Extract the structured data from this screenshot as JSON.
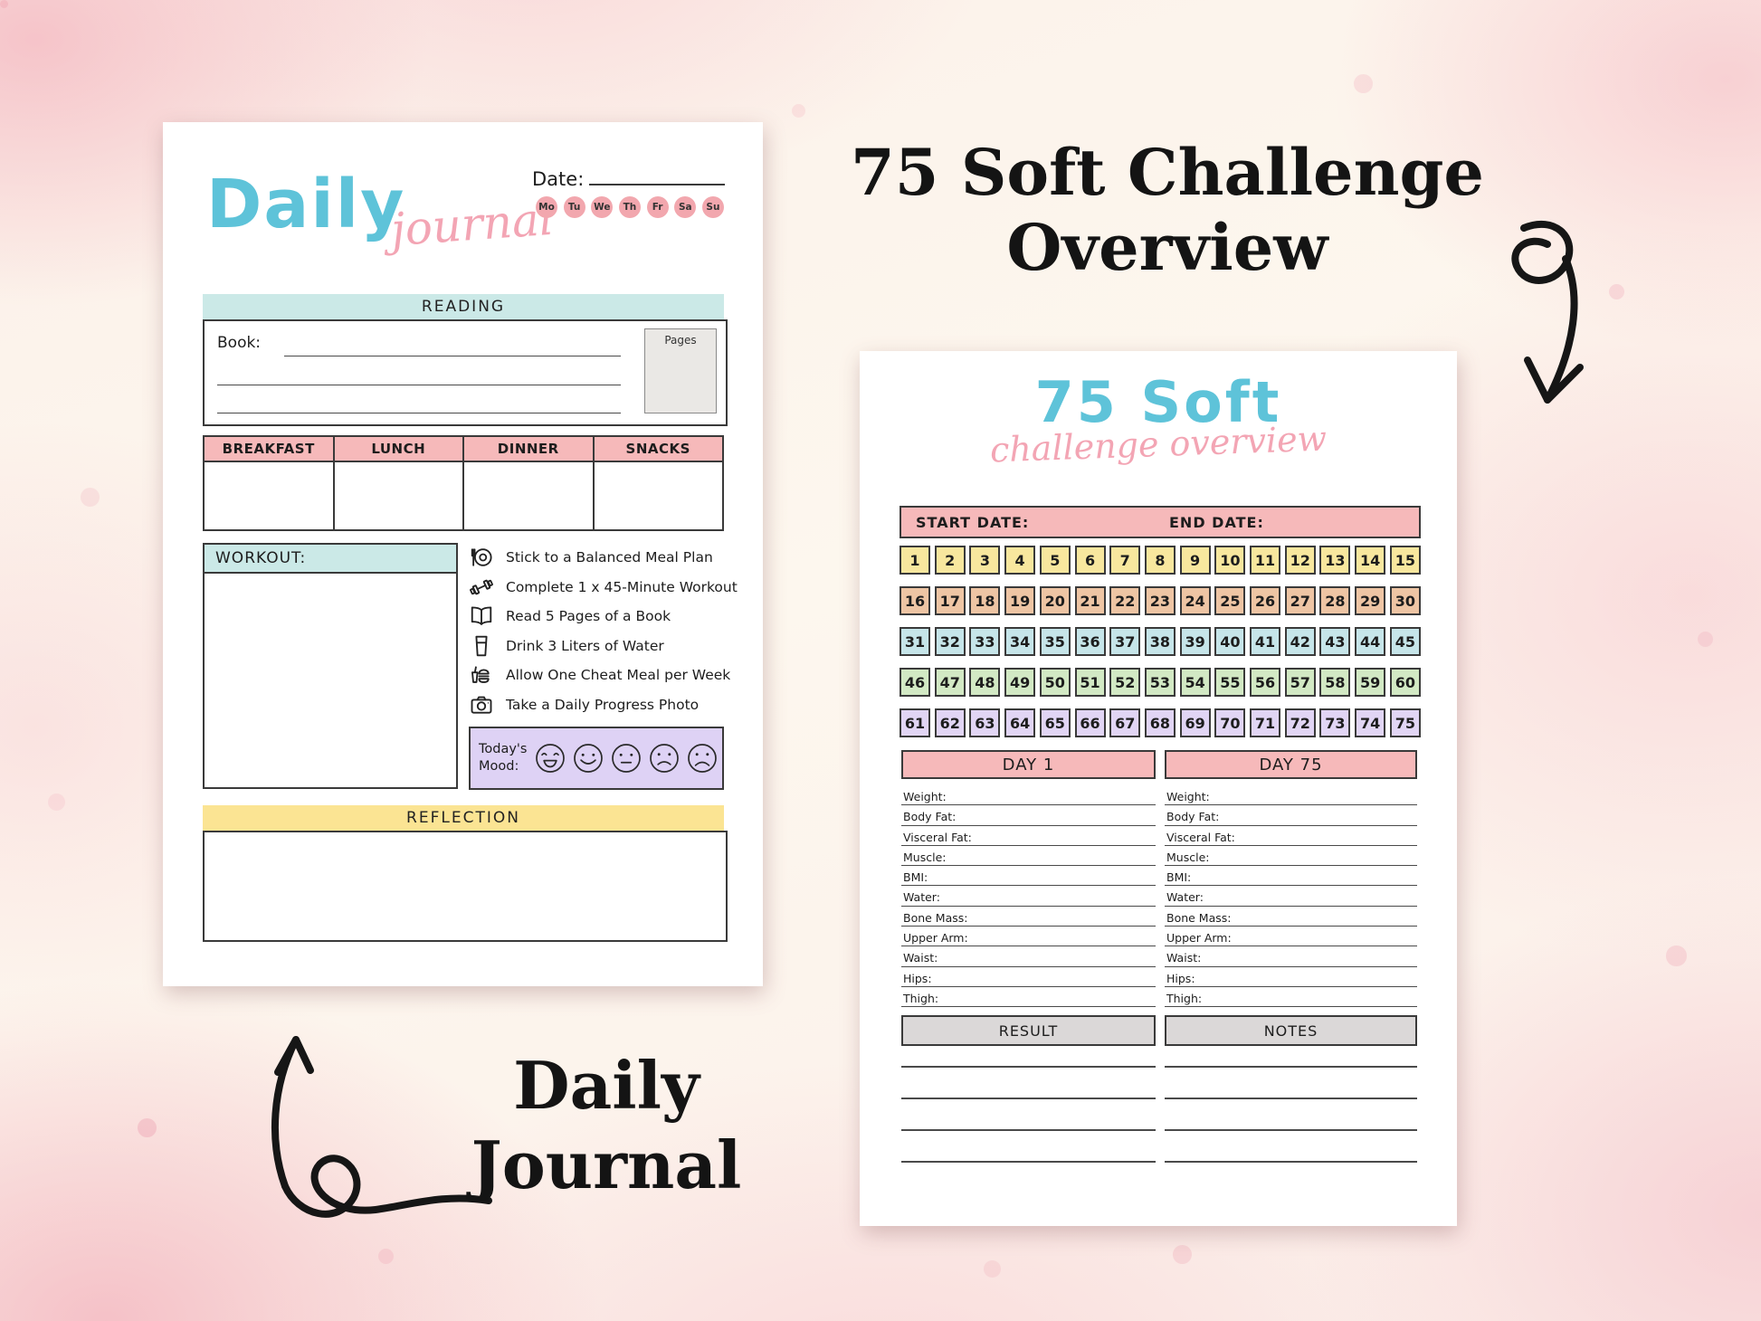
{
  "colors": {
    "teal": "#cbe9e7",
    "pink": "#f6b9ba",
    "yellow": "#fbe493",
    "purple_mood": "#ded2f5",
    "circle_pink": "#f2a7ae",
    "logo_blue": "#5ec3d9",
    "logo_pink": "#f3a5b4",
    "header_gray": "#dbd8d8"
  },
  "annotations": {
    "title_line1": "75 Soft Challenge",
    "title_line2": "Overview",
    "label_line1": "Daily",
    "label_line2": "Journal"
  },
  "daily_journal": {
    "logo_primary": "Daily",
    "logo_script": "journal",
    "date_label": "Date:",
    "day_circles": [
      "Mo",
      "Tu",
      "We",
      "Th",
      "Fr",
      "Sa",
      "Su"
    ],
    "reading": {
      "header": "READING",
      "book_label": "Book:",
      "pages_label": "Pages",
      "write_lines": 2
    },
    "meals": {
      "columns": [
        "BREAKFAST",
        "LUNCH",
        "DINNER",
        "SNACKS"
      ]
    },
    "workout_header": "WORKOUT:",
    "checklist": [
      {
        "icon": "meal-plan-icon",
        "label": "Stick to a Balanced Meal Plan"
      },
      {
        "icon": "dumbbell-icon",
        "label": "Complete 1 x 45-Minute Workout"
      },
      {
        "icon": "open-book-icon",
        "label": "Read 5 Pages of a Book"
      },
      {
        "icon": "water-glass-icon",
        "label": "Drink 3 Liters of Water"
      },
      {
        "icon": "cheat-meal-icon",
        "label": "Allow One Cheat Meal per Week"
      },
      {
        "icon": "camera-icon",
        "label": "Take a Daily Progress Photo"
      }
    ],
    "mood": {
      "label_line1": "Today's",
      "label_line2": "Mood:",
      "faces": [
        "laughing",
        "smiling",
        "neutral",
        "sad",
        "frowning"
      ]
    },
    "reflection_header": "REFLECTION"
  },
  "challenge_overview": {
    "logo_primary": "75 Soft",
    "logo_script": "challenge overview",
    "start_date_label": "START DATE:",
    "end_date_label": "END DATE:",
    "day_grid_rows": [
      {
        "color": "#f8e79e",
        "numbers": [
          1,
          2,
          3,
          4,
          5,
          6,
          7,
          8,
          9,
          10,
          11,
          12,
          13,
          14,
          15
        ]
      },
      {
        "color": "#eec5a4",
        "numbers": [
          16,
          17,
          18,
          19,
          20,
          21,
          22,
          23,
          24,
          25,
          26,
          27,
          28,
          29,
          30
        ]
      },
      {
        "color": "#c6e5e9",
        "numbers": [
          31,
          32,
          33,
          34,
          35,
          36,
          37,
          38,
          39,
          40,
          41,
          42,
          43,
          44,
          45
        ]
      },
      {
        "color": "#d2e9c4",
        "numbers": [
          46,
          47,
          48,
          49,
          50,
          51,
          52,
          53,
          54,
          55,
          56,
          57,
          58,
          59,
          60
        ]
      },
      {
        "color": "#e1d5f4",
        "numbers": [
          61,
          62,
          63,
          64,
          65,
          66,
          67,
          68,
          69,
          70,
          71,
          72,
          73,
          74,
          75
        ]
      }
    ],
    "day1_header": "DAY 1",
    "day75_header": "DAY 75",
    "measurement_fields": [
      "Weight:",
      "Body Fat:",
      "Visceral Fat:",
      "Muscle:",
      "BMI:",
      "Water:",
      "Bone Mass:",
      "Upper Arm:",
      "Waist:",
      "Hips:",
      "Thigh:"
    ],
    "result_header": "RESULT",
    "notes_header": "NOTES",
    "result_note_lines": 4
  }
}
